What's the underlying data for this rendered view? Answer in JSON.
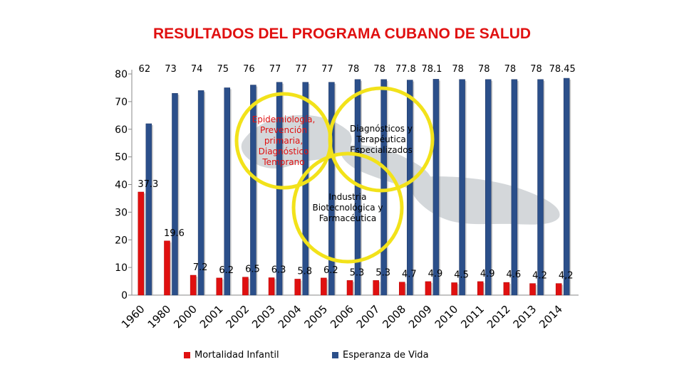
{
  "title": "RESULTADOS DEL PROGRAMA CUBANO DE SALUD",
  "chart_data": {
    "type": "bar",
    "categories": [
      "1960",
      "1980",
      "2000",
      "2001",
      "2002",
      "2003",
      "2004",
      "2005",
      "2006",
      "2007",
      "2008",
      "2009",
      "2010",
      "2011",
      "2012",
      "2013",
      "2014"
    ],
    "ylim": [
      0,
      80
    ],
    "yticks": [
      0,
      10,
      20,
      30,
      40,
      50,
      60,
      70,
      80
    ],
    "grid": false,
    "legend_position": "bottom",
    "series": [
      {
        "name": "Mortalidad Infantil",
        "color": "#e01010",
        "values": [
          37.3,
          19.6,
          7.2,
          6.2,
          6.5,
          6.3,
          5.8,
          6.2,
          5.3,
          5.3,
          4.7,
          4.9,
          4.5,
          4.9,
          4.6,
          4.2,
          4.2
        ],
        "labels": [
          "37.3",
          "19.6",
          "7.2",
          "6.2",
          "6.5",
          "6.3",
          "5.8",
          "6.2",
          "5.3",
          "5.3",
          "4.7",
          "4.9",
          "4.5",
          "4.9",
          "4.6",
          "4.2",
          "4,2"
        ]
      },
      {
        "name": "Esperanza de Vida",
        "color": "#2b4f8a",
        "values": [
          62,
          73,
          74,
          75,
          76,
          77,
          77,
          77,
          78,
          78,
          77.8,
          78.1,
          78,
          78,
          78,
          78,
          78.45
        ],
        "labels": [
          "62",
          "73",
          "74",
          "75",
          "76",
          "77",
          "77",
          "77",
          "78",
          "78",
          "77.8",
          "78.1",
          "78",
          "78",
          "78",
          "78",
          "78.45"
        ]
      }
    ],
    "annotations": [
      "Epidemiología, Prevención primaria, Diagnóstico Temprano",
      "Diagnósticos y Terapéutica Especializados",
      "Industria Biotecnológica y Farmacéutica"
    ]
  }
}
